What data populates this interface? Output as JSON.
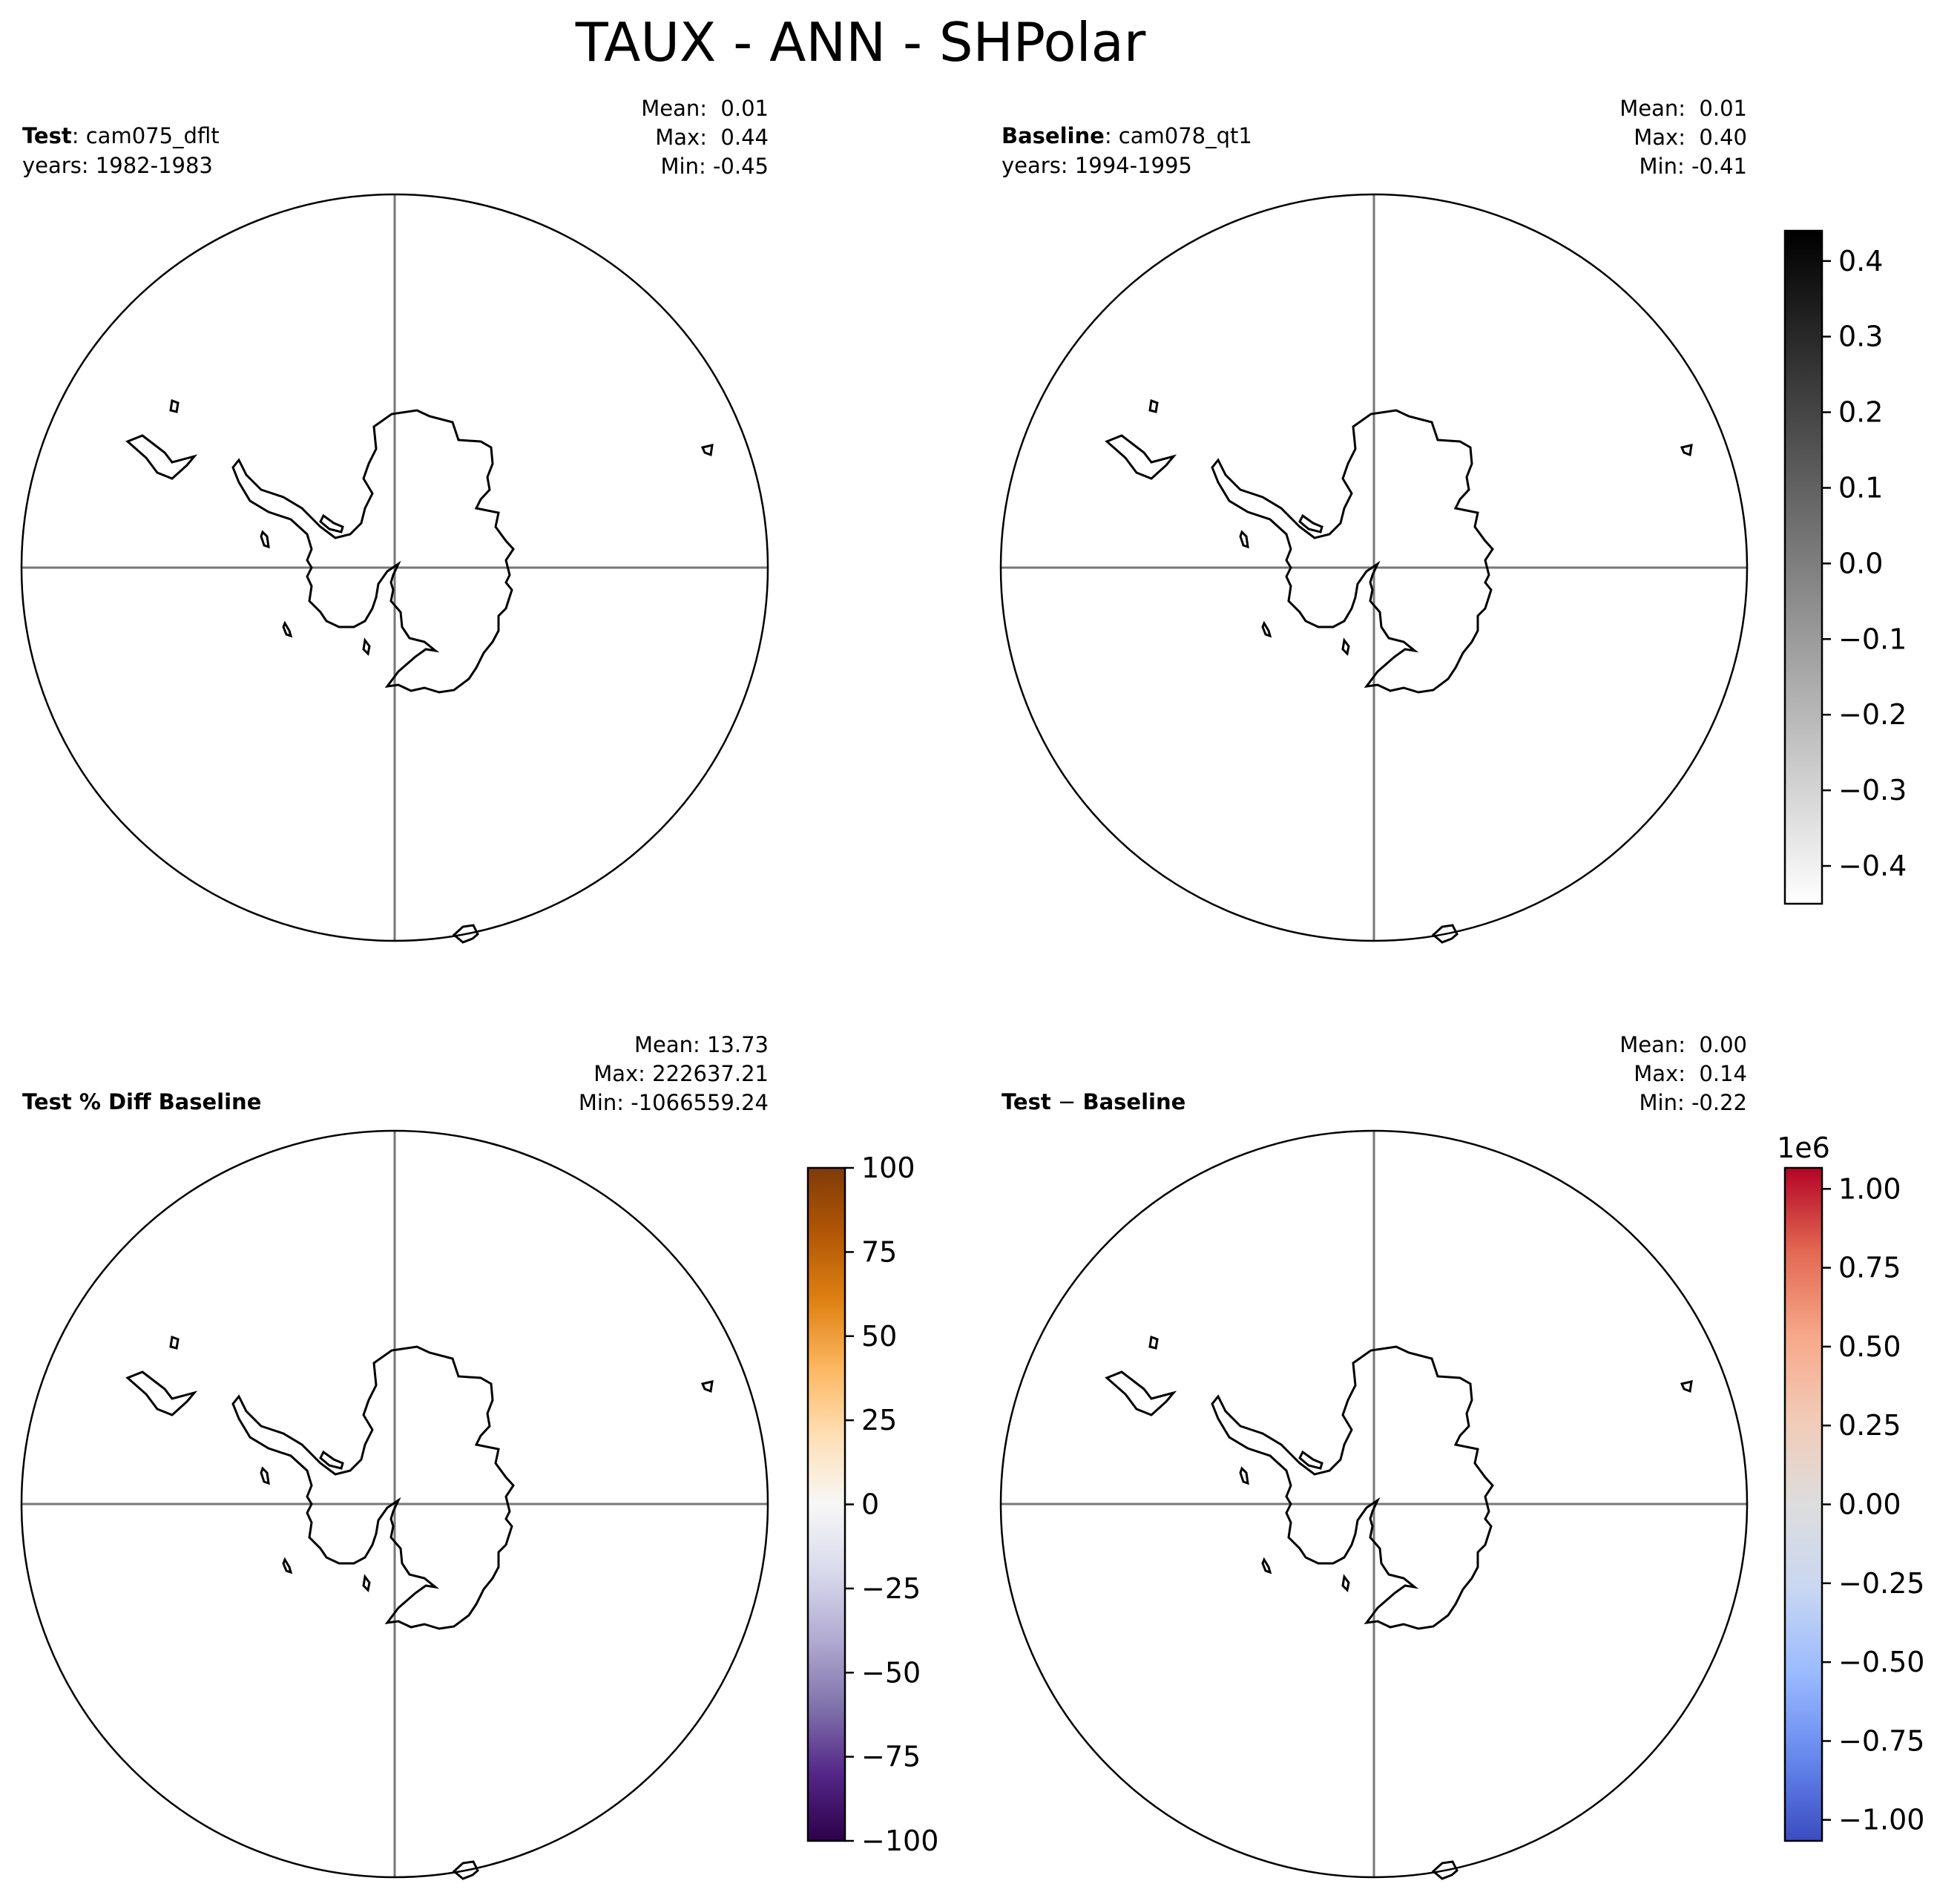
{
  "figure": {
    "title": "TAUX - ANN - SHPolar"
  },
  "chart_data": [
    {
      "type": "heatmap",
      "panel": "test",
      "label_bold": "Test",
      "label_rest": ": cam075_dflt",
      "years": "years: 1982-1983",
      "stats": [
        "Mean:  0.01",
        "Max:  0.44",
        "Min: -0.45"
      ],
      "values": {
        "mean": 0.01,
        "max": 0.44,
        "min": -0.45
      }
    },
    {
      "type": "heatmap",
      "panel": "baseline",
      "label_bold": "Baseline",
      "label_rest": ": cam078_qt1",
      "years": "years: 1994-1995",
      "stats": [
        "Mean:  0.01",
        "Max:  0.40",
        "Min: -0.41"
      ],
      "values": {
        "mean": 0.01,
        "max": 0.4,
        "min": -0.41
      }
    },
    {
      "type": "heatmap",
      "panel": "pct_diff",
      "label_bold": "Test % Diff Baseline",
      "label_rest": "",
      "years": "",
      "stats": [
        "Mean: 13.73",
        "Max: 222637.21",
        "Min: -1066559.24"
      ],
      "values": {
        "mean": 13.73,
        "max": 222637.21,
        "min": -1066559.24
      }
    },
    {
      "type": "heatmap",
      "panel": "diff",
      "label_bold": "Test",
      "label_sep": " − ",
      "label_bold2": "Baseline",
      "label_rest": "",
      "years": "",
      "stats": [
        "Mean:  0.00",
        "Max:  0.14",
        "Min: -0.22"
      ],
      "values": {
        "mean": 0.0,
        "max": 0.14,
        "min": -0.22
      }
    }
  ],
  "colorbars": [
    {
      "name": "greys",
      "colormap": "Greys",
      "colors": [
        "#ffffff",
        "#000000"
      ],
      "range": [
        -0.45,
        0.44
      ],
      "ticks": [
        0.4,
        0.3,
        0.2,
        0.1,
        0.0,
        -0.1,
        -0.2,
        -0.3,
        -0.4
      ],
      "tick_labels": [
        "0.4",
        "0.3",
        "0.2",
        "0.1",
        "0.0",
        "−0.1",
        "−0.2",
        "−0.3",
        "−0.4"
      ],
      "offset_label": ""
    },
    {
      "name": "puor",
      "colormap": "PuOr_r",
      "colors": [
        "#2d004b",
        "#542788",
        "#8073ac",
        "#b2abd2",
        "#d8daeb",
        "#f7f7f7",
        "#fee0b6",
        "#fdb863",
        "#e08214",
        "#b35806",
        "#7f3b08"
      ],
      "range": [
        -100,
        100
      ],
      "ticks": [
        100,
        75,
        50,
        25,
        0,
        -25,
        -50,
        -75,
        -100
      ],
      "tick_labels": [
        "100",
        "75",
        "50",
        "25",
        "0",
        "−25",
        "−50",
        "−75",
        "−100"
      ],
      "offset_label": ""
    },
    {
      "name": "coolwarm",
      "colormap": "coolwarm",
      "colors": [
        "#3b4cc0",
        "#6788ee",
        "#9abbff",
        "#c9d7f0",
        "#dddddd",
        "#f2cbb7",
        "#f7a889",
        "#e26952",
        "#b40426"
      ],
      "range": [
        -1066559.24,
        1066559.24
      ],
      "ticks": [
        1.0,
        0.75,
        0.5,
        0.25,
        0.0,
        -0.25,
        -0.5,
        -0.75,
        -1.0
      ],
      "tick_labels": [
        "1.00",
        "0.75",
        "0.50",
        "0.25",
        "0.00",
        "−0.25",
        "−0.50",
        "−0.75",
        "−1.00"
      ],
      "offset_label": "1e6"
    }
  ]
}
